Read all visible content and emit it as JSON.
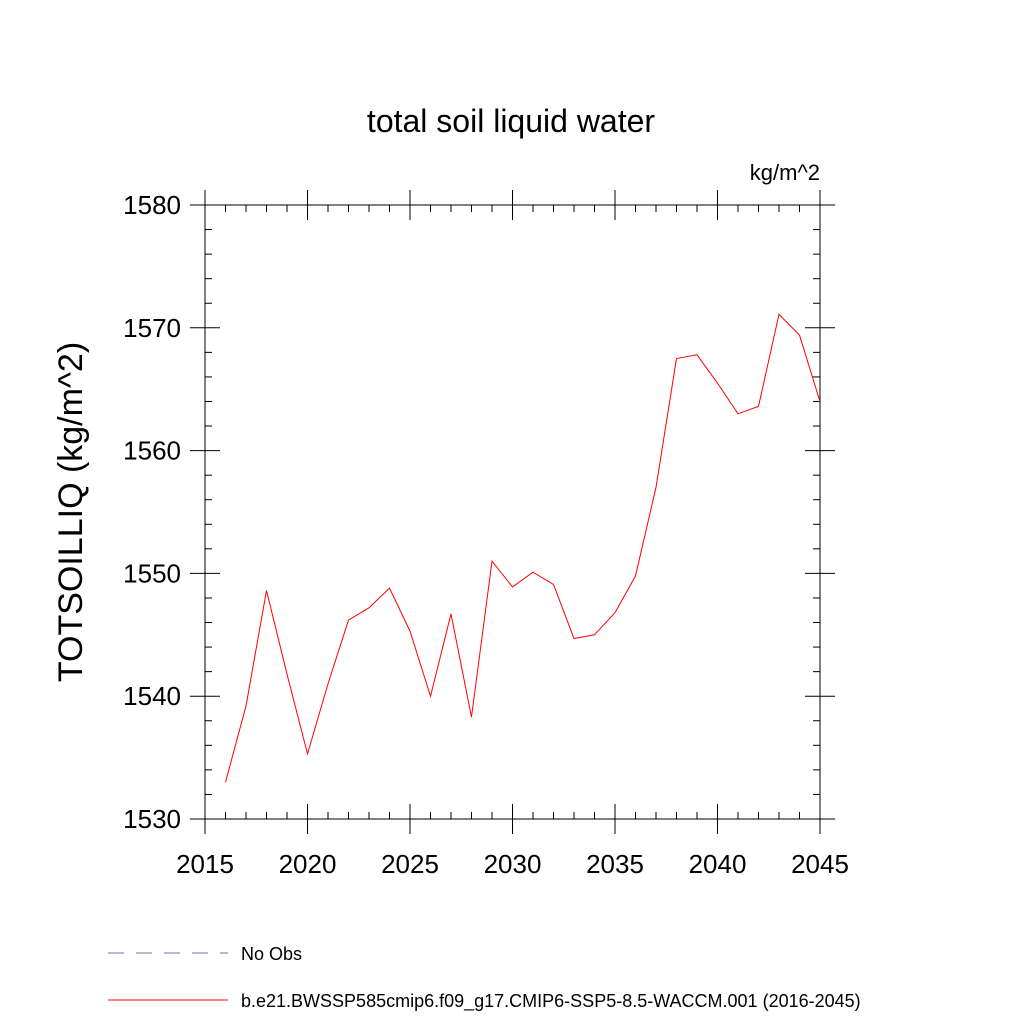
{
  "chart_data": {
    "type": "line",
    "title": "total soil liquid water",
    "units_label": "kg/m^2",
    "ylabel": "TOTSOILLIQ  (kg/m^2)",
    "xlabel": "",
    "xlim": [
      2015,
      2045
    ],
    "ylim": [
      1530,
      1580
    ],
    "x_ticks": [
      2015,
      2020,
      2025,
      2030,
      2035,
      2040,
      2045
    ],
    "y_ticks": [
      1530,
      1540,
      1550,
      1560,
      1570,
      1580
    ],
    "grid": false,
    "legend_position": "bottom-left",
    "series": [
      {
        "name": "No Obs",
        "color": "#7b6fae",
        "dash": "dashed",
        "x": [],
        "values": []
      },
      {
        "name": "b.e21.BWSSP585cmip6.f09_g17.CMIP6-SSP5-8.5-WACCM.001 (2016-2045)",
        "color": "#ff0000",
        "dash": "solid",
        "x": [
          2016,
          2017,
          2018,
          2019,
          2020,
          2021,
          2022,
          2023,
          2024,
          2025,
          2026,
          2027,
          2028,
          2029,
          2030,
          2031,
          2032,
          2033,
          2034,
          2035,
          2036,
          2037,
          2038,
          2039,
          2040,
          2041,
          2042,
          2043,
          2044,
          2045
        ],
        "values": [
          1533.0,
          1539.2,
          1548.6,
          1541.8,
          1535.3,
          1541.0,
          1546.2,
          1547.2,
          1548.8,
          1545.3,
          1540.0,
          1546.7,
          1538.3,
          1551.0,
          1548.9,
          1550.1,
          1549.1,
          1544.7,
          1545.0,
          1546.8,
          1549.8,
          1557.0,
          1567.5,
          1567.8,
          1565.5,
          1563.0,
          1563.6,
          1571.1,
          1569.4,
          1564.0
        ]
      }
    ]
  }
}
